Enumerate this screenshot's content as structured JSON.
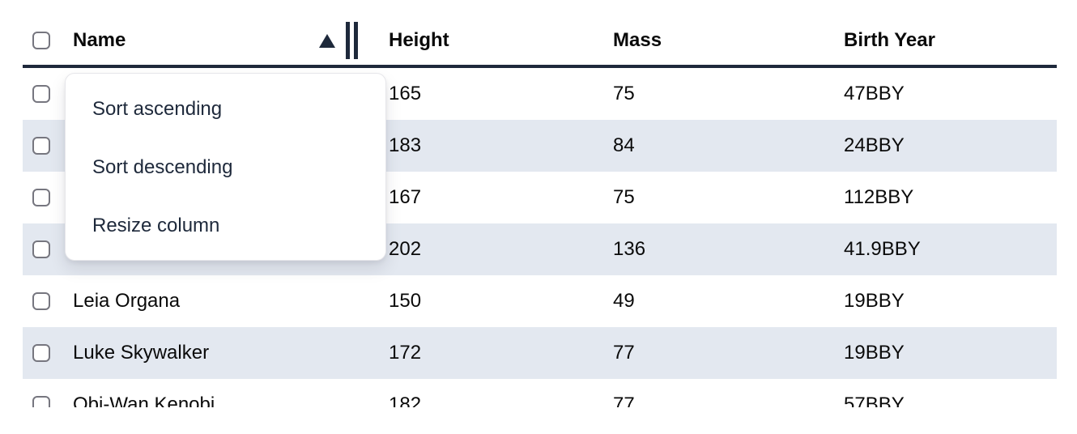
{
  "table": {
    "columns": [
      {
        "key": "name",
        "label": "Name",
        "sorted": "ascending"
      },
      {
        "key": "height",
        "label": "Height"
      },
      {
        "key": "mass",
        "label": "Mass"
      },
      {
        "key": "birth_year",
        "label": "Birth Year"
      }
    ],
    "rows": [
      {
        "name": "",
        "height": "165",
        "mass": "75",
        "birth_year": "47BBY",
        "shaded": false
      },
      {
        "name": "",
        "height": "183",
        "mass": "84",
        "birth_year": "24BBY",
        "shaded": true
      },
      {
        "name": "",
        "height": "167",
        "mass": "75",
        "birth_year": "112BBY",
        "shaded": false
      },
      {
        "name": "",
        "height": "202",
        "mass": "136",
        "birth_year": "41.9BBY",
        "shaded": true
      },
      {
        "name": "Leia Organa",
        "height": "150",
        "mass": "49",
        "birth_year": "19BBY",
        "shaded": false
      },
      {
        "name": "Luke Skywalker",
        "height": "172",
        "mass": "77",
        "birth_year": "19BBY",
        "shaded": true
      },
      {
        "name": "Obi-Wan Kenobi",
        "height": "182",
        "mass": "77",
        "birth_year": "57BBY",
        "shaded": false
      }
    ]
  },
  "context_menu": {
    "items": [
      {
        "label": "Sort ascending"
      },
      {
        "label": "Sort descending"
      },
      {
        "label": "Resize column"
      }
    ]
  },
  "icons": {
    "sort_ascending": "triangle-up-icon",
    "resize_column": "double-bar-icon"
  },
  "colors": {
    "accent": "#1e293b",
    "row_alt": "#e3e8f0",
    "cb_border": "#76767f",
    "menu_text": "#1e293b",
    "menu_border": "#e6e6ea",
    "text": "#0a0a0a"
  }
}
